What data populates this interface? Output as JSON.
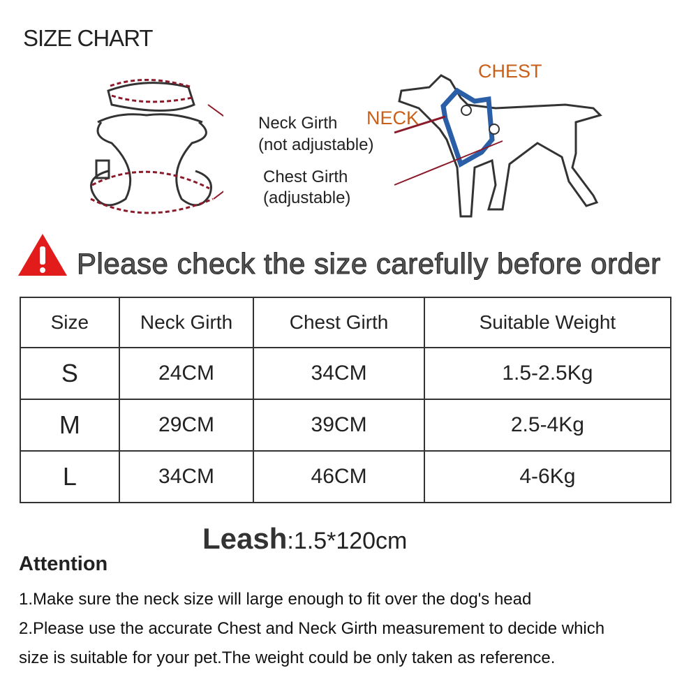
{
  "title": "SIZE CHART",
  "diagram": {
    "neck_girth": "Neck Girth",
    "neck_note": "(not adjustable)",
    "chest_girth": "Chest Girth",
    "chest_note": "(adjustable)",
    "dog_chest": "CHEST",
    "dog_neck": "NECK",
    "harness_color": "#2a5fa8",
    "label_color": "#c8601a",
    "pointer_color": "#8b1a2a"
  },
  "warning": {
    "icon": "warning-triangle-icon",
    "text": "Please check the size carefully before order"
  },
  "table": {
    "headers": [
      "Size",
      "Neck Girth",
      "Chest Girth",
      "Suitable Weight"
    ],
    "rows": [
      [
        "S",
        "24CM",
        "34CM",
        "1.5-2.5Kg"
      ],
      [
        "M",
        "29CM",
        "39CM",
        "2.5-4Kg"
      ],
      [
        "L",
        "34CM",
        "46CM",
        "4-6Kg"
      ]
    ]
  },
  "leash": {
    "label": "Leash",
    "value": ":1.5*120cm"
  },
  "attention": {
    "heading": "Attention",
    "lines": [
      "1.Make sure the neck size  will large enough to fit over the dog's head",
      "2.Please use the accurate Chest and Neck Girth measurement to decide which",
      "size is suitable for your pet.The weight could be only taken as reference."
    ]
  }
}
